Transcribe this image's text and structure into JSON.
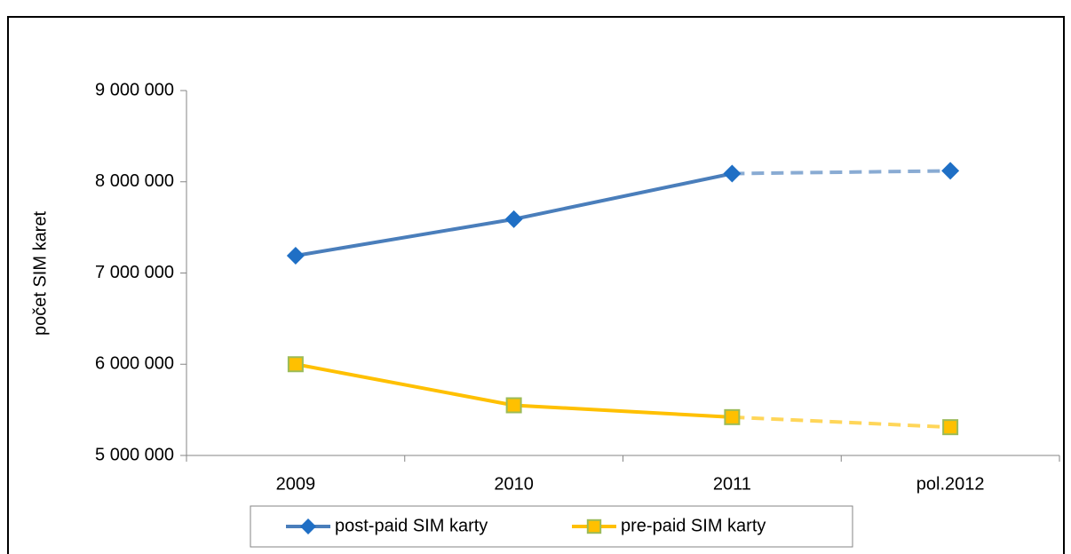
{
  "chart_data": {
    "type": "line",
    "y_label": "počet SIM karet",
    "categories": [
      "2009",
      "2010",
      "2011",
      "pol.2012"
    ],
    "series": [
      {
        "name": "post-paid SIM karty",
        "color": "#4a7ebb",
        "marker_color": "#1f6fc5",
        "marker": "diamond",
        "values": [
          7190000,
          7590000,
          8090000,
          8120000
        ]
      },
      {
        "name": "pre-paid SIM karty",
        "color": "#ffc000",
        "marker_color": "#ffc000",
        "marker": "square",
        "values": [
          6000000,
          5550000,
          5420000,
          5310000
        ]
      }
    ],
    "dashed_from_index": 2,
    "ylim": [
      5000000,
      9000000
    ],
    "yticks": [
      {
        "value": 5000000,
        "label": "5 000 000"
      },
      {
        "value": 6000000,
        "label": "6 000 000"
      },
      {
        "value": 7000000,
        "label": "7 000 000"
      },
      {
        "value": 8000000,
        "label": "8 000 000"
      },
      {
        "value": 9000000,
        "label": "9 000 000"
      }
    ],
    "grid": false,
    "legend": "bottom"
  }
}
